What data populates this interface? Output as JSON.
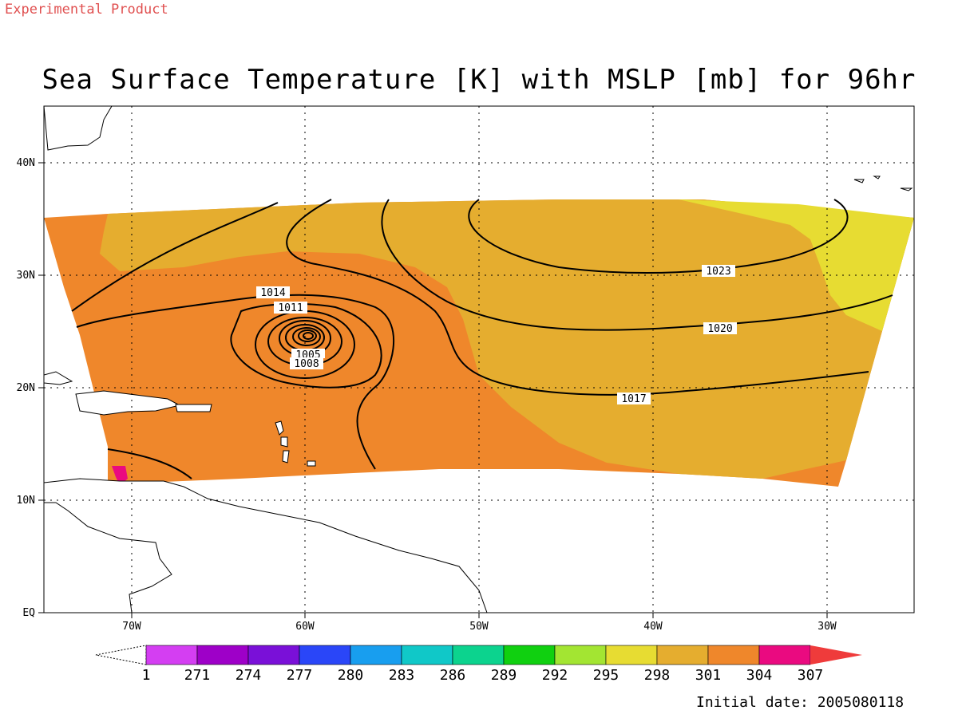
{
  "header": {
    "watermark": "Experimental Product",
    "title": "Sea Surface Temperature [K] with MSLP [mb] for 96hr"
  },
  "footer": {
    "initial_date": "Initial date: 2005080118"
  },
  "map": {
    "lat_ticks": [
      "40N",
      "30N",
      "20N",
      "10N",
      "EQ"
    ],
    "lon_ticks": [
      "70W",
      "60W",
      "50W",
      "40W",
      "30W"
    ],
    "grid": "dotted",
    "isobars": [
      "1014",
      "1011",
      "1005",
      "1008",
      "1023",
      "1020",
      "1017"
    ],
    "colors": {
      "sst_301": "#e5ad2f",
      "sst_304": "#ef872b",
      "sst_298": "#e7dc32",
      "sst_307": "#ea0a80"
    }
  },
  "colorbar": {
    "labels": [
      "1",
      "271",
      "274",
      "277",
      "280",
      "283",
      "286",
      "289",
      "292",
      "295",
      "298",
      "301",
      "304",
      "307"
    ],
    "colors": [
      "#d43ef2",
      "#9e00c8",
      "#7a10d8",
      "#2a46f8",
      "#189eef",
      "#10c8c8",
      "#0cd38e",
      "#10d010",
      "#a3e532",
      "#e7dc32",
      "#e5ad2f",
      "#ef872b",
      "#ea0a80"
    ],
    "end_color": "#ef3b3b"
  }
}
